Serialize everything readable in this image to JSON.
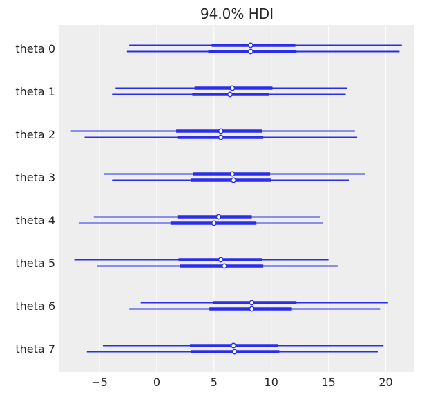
{
  "chart_data": {
    "type": "forest",
    "title": "94.0% HDI",
    "xlabel": "",
    "ylabel": "",
    "xlim": [
      -8.5,
      22.5
    ],
    "xticks": [
      -5,
      0,
      5,
      10,
      15,
      20
    ],
    "xtick_labels": [
      "−5",
      "0",
      "5",
      "10",
      "15",
      "20"
    ],
    "grid": true,
    "color": "#2a2eec",
    "background": "#eeeeee",
    "categories": [
      "theta 0",
      "theta 1",
      "theta 2",
      "theta 3",
      "theta 4",
      "theta 5",
      "theta 6",
      "theta 7"
    ],
    "chains": [
      {
        "values": [
          {
            "hdi": [
              -2.4,
              21.4
            ],
            "iqr": [
              4.8,
              12.1
            ],
            "median": 8.2
          },
          {
            "hdi": [
              -3.6,
              16.6
            ],
            "iqr": [
              3.3,
              10.1
            ],
            "median": 6.6
          },
          {
            "hdi": [
              -7.5,
              17.3
            ],
            "iqr": [
              1.7,
              9.2
            ],
            "median": 5.6
          },
          {
            "hdi": [
              -4.6,
              18.2
            ],
            "iqr": [
              3.2,
              9.9
            ],
            "median": 6.6
          },
          {
            "hdi": [
              -5.5,
              14.3
            ],
            "iqr": [
              1.8,
              8.3
            ],
            "median": 5.4
          },
          {
            "hdi": [
              -7.2,
              15.0
            ],
            "iqr": [
              1.9,
              9.2
            ],
            "median": 5.6
          },
          {
            "hdi": [
              -1.4,
              20.2
            ],
            "iqr": [
              4.9,
              12.2
            ],
            "median": 8.3
          },
          {
            "hdi": [
              -4.7,
              19.8
            ],
            "iqr": [
              2.9,
              10.6
            ],
            "median": 6.7
          }
        ]
      },
      {
        "values": [
          {
            "hdi": [
              -2.6,
              21.2
            ],
            "iqr": [
              4.5,
              12.2
            ],
            "median": 8.2
          },
          {
            "hdi": [
              -3.9,
              16.5
            ],
            "iqr": [
              3.1,
              9.8
            ],
            "median": 6.4
          },
          {
            "hdi": [
              -6.3,
              17.5
            ],
            "iqr": [
              1.8,
              9.3
            ],
            "median": 5.6
          },
          {
            "hdi": [
              -3.9,
              16.8
            ],
            "iqr": [
              3.0,
              10.0
            ],
            "median": 6.7
          },
          {
            "hdi": [
              -6.8,
              14.5
            ],
            "iqr": [
              1.2,
              8.7
            ],
            "median": 5.0
          },
          {
            "hdi": [
              -5.2,
              15.8
            ],
            "iqr": [
              2.0,
              9.3
            ],
            "median": 5.9
          },
          {
            "hdi": [
              -2.4,
              19.5
            ],
            "iqr": [
              4.6,
              11.8
            ],
            "median": 8.3
          },
          {
            "hdi": [
              -6.1,
              19.3
            ],
            "iqr": [
              3.0,
              10.7
            ],
            "median": 6.8
          }
        ]
      }
    ]
  }
}
